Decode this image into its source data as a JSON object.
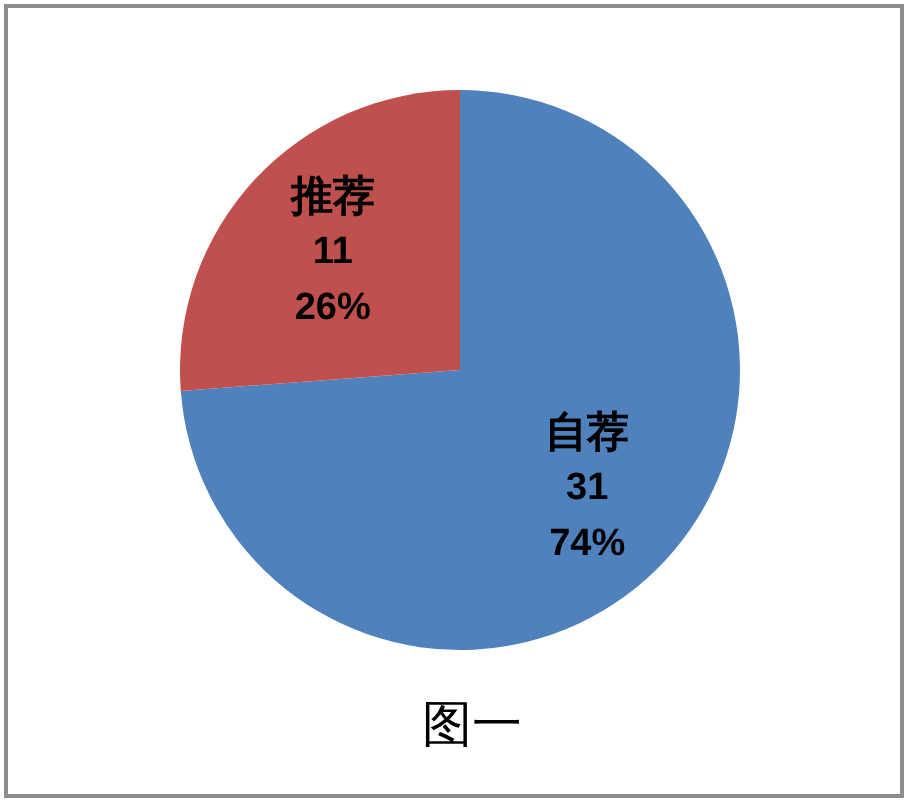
{
  "chart_data": {
    "type": "pie",
    "title": "图一",
    "categories": [
      "自荐",
      "推荐"
    ],
    "values": [
      31,
      11
    ],
    "colors": [
      "#4f81bd",
      "#c0504d"
    ],
    "value_labels": [
      "31\n74%",
      "11\n26%"
    ]
  }
}
